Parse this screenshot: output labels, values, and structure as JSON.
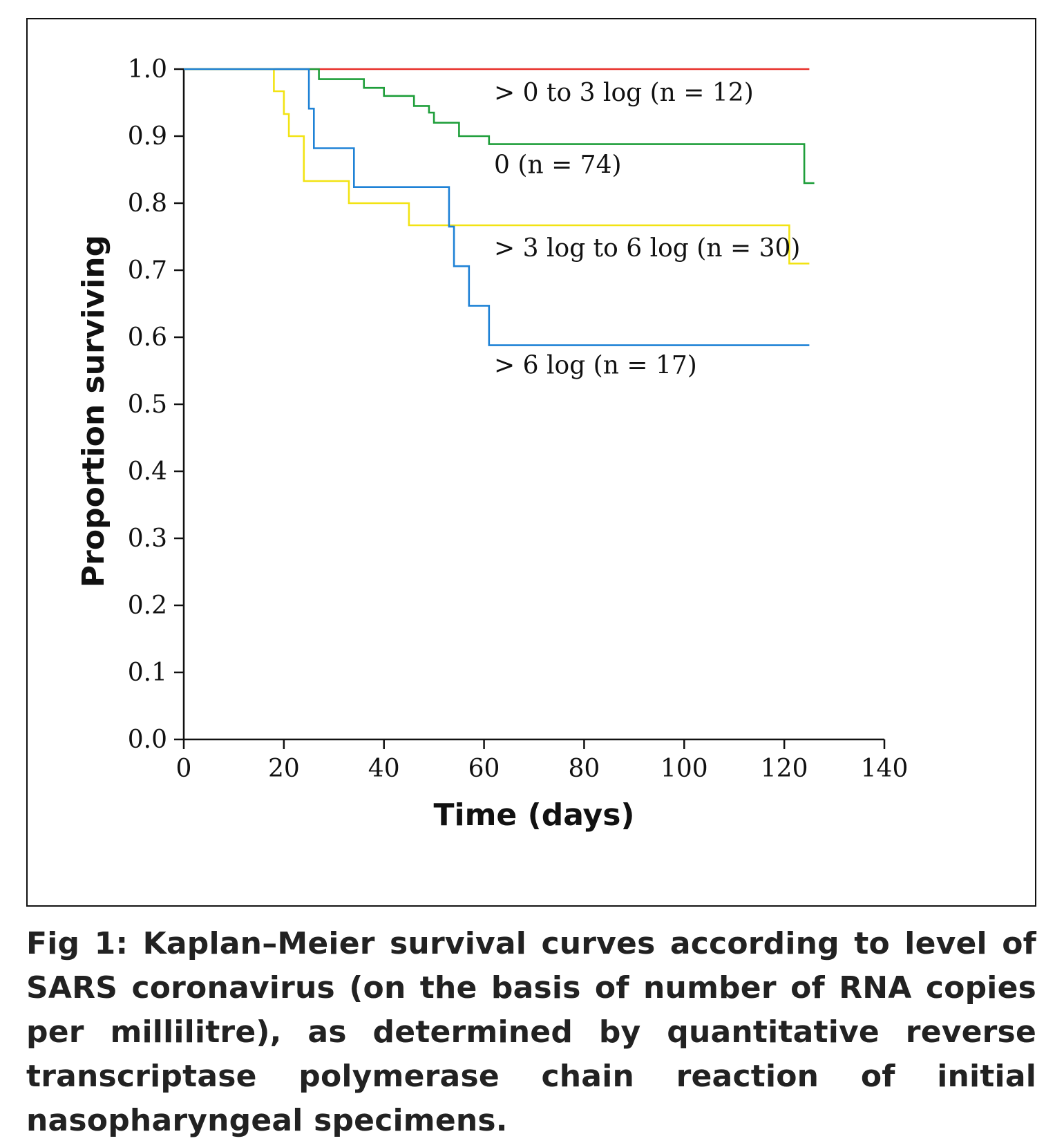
{
  "chart_data": {
    "type": "line",
    "subtype": "step",
    "xlabel": "Time (days)",
    "ylabel": "Proportion surviving",
    "xlim": [
      0,
      140
    ],
    "ylim": [
      0,
      1.0
    ],
    "xticks": [
      "0",
      "20",
      "40",
      "60",
      "80",
      "100",
      "120",
      "140"
    ],
    "xtick_values": [
      0,
      20,
      40,
      60,
      80,
      100,
      120,
      140
    ],
    "yticks": [
      "0.0",
      "0.1",
      "0.2",
      "0.3",
      "0.4",
      "0.5",
      "0.6",
      "0.7",
      "0.8",
      "0.9",
      "1.0"
    ],
    "ytick_values": [
      0,
      0.1,
      0.2,
      0.3,
      0.4,
      0.5,
      0.6,
      0.7,
      0.8,
      0.9,
      1.0
    ],
    "grid": false,
    "series": [
      {
        "name": "> 0 to 3 log (n = 12)",
        "color": "#e8302a",
        "points": [
          [
            0,
            1.0
          ],
          [
            125,
            1.0
          ]
        ]
      },
      {
        "name": "0 (n = 74)",
        "color": "#1e9e3a",
        "points": [
          [
            0,
            1.0
          ],
          [
            27,
            1.0
          ],
          [
            27,
            0.985
          ],
          [
            36,
            0.985
          ],
          [
            36,
            0.972
          ],
          [
            40,
            0.972
          ],
          [
            40,
            0.96
          ],
          [
            46,
            0.96
          ],
          [
            46,
            0.945
          ],
          [
            49,
            0.945
          ],
          [
            49,
            0.935
          ],
          [
            50,
            0.935
          ],
          [
            50,
            0.92
          ],
          [
            55,
            0.92
          ],
          [
            55,
            0.9
          ],
          [
            61,
            0.9
          ],
          [
            61,
            0.888
          ],
          [
            124,
            0.888
          ],
          [
            124,
            0.83
          ],
          [
            126,
            0.83
          ]
        ]
      },
      {
        "name": "> 3 log to 6 log (n = 30)",
        "color": "#f2e313",
        "points": [
          [
            0,
            1.0
          ],
          [
            18,
            1.0
          ],
          [
            18,
            0.967
          ],
          [
            20,
            0.967
          ],
          [
            20,
            0.933
          ],
          [
            21,
            0.933
          ],
          [
            21,
            0.9
          ],
          [
            24,
            0.9
          ],
          [
            24,
            0.833
          ],
          [
            33,
            0.833
          ],
          [
            33,
            0.8
          ],
          [
            45,
            0.8
          ],
          [
            45,
            0.767
          ],
          [
            121,
            0.767
          ],
          [
            121,
            0.71
          ],
          [
            125,
            0.71
          ]
        ]
      },
      {
        "name": "> 6 log (n = 17)",
        "color": "#1f82d6",
        "points": [
          [
            0,
            1.0
          ],
          [
            25,
            1.0
          ],
          [
            25,
            0.941
          ],
          [
            26,
            0.941
          ],
          [
            26,
            0.882
          ],
          [
            34,
            0.882
          ],
          [
            34,
            0.824
          ],
          [
            53,
            0.824
          ],
          [
            53,
            0.765
          ],
          [
            54,
            0.765
          ],
          [
            54,
            0.706
          ],
          [
            57,
            0.706
          ],
          [
            57,
            0.647
          ],
          [
            61,
            0.647
          ],
          [
            61,
            0.588
          ],
          [
            125,
            0.588
          ]
        ]
      }
    ],
    "annotations": [
      {
        "text": "> 0 to 3 log (n = 12)",
        "x": 62,
        "y": 0.965
      },
      {
        "text": "0 (n = 74)",
        "x": 62,
        "y": 0.857
      },
      {
        "text": "> 3 log to 6 log (n = 30)",
        "x": 62,
        "y": 0.733
      },
      {
        "text": "> 6 log (n = 17)",
        "x": 62,
        "y": 0.558
      }
    ]
  },
  "caption": "Fig 1: Kaplan–Meier survival curves according to level of SARS coronavirus (on the basis of number of RNA copies per millilitre), as determined by quantitative reverse transcriptase polymerase chain reaction of initial nasopharyngeal specimens."
}
